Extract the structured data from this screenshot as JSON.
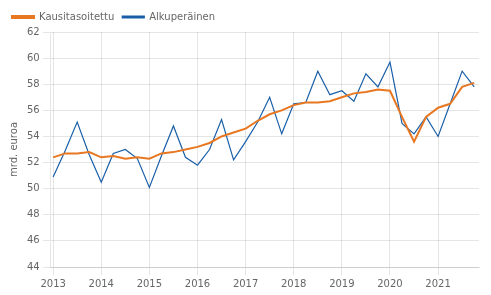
{
  "chart_data": {
    "type": "line",
    "ylabel": "mrd. euroa",
    "x": [
      2013,
      2013.25,
      2013.5,
      2013.75,
      2014,
      2014.25,
      2014.5,
      2014.75,
      2015,
      2015.25,
      2015.5,
      2015.75,
      2016,
      2016.25,
      2016.5,
      2016.75,
      2017,
      2017.25,
      2017.5,
      2017.75,
      2018,
      2018.25,
      2018.5,
      2018.75,
      2019,
      2019.25,
      2019.5,
      2019.75,
      2020,
      2020.25,
      2020.5,
      2020.75,
      2021,
      2021.25,
      2021.5,
      2021.75
    ],
    "series": [
      {
        "name": "Alkuperäinen",
        "color": "#1a5fa8",
        "values": [
          50.9,
          52.9,
          55.1,
          52.6,
          50.5,
          52.7,
          53.0,
          52.3,
          50.1,
          52.5,
          54.8,
          52.4,
          51.8,
          53.0,
          55.3,
          52.2,
          53.6,
          55.1,
          57.0,
          54.2,
          56.5,
          56.6,
          59.0,
          57.2,
          57.5,
          56.7,
          58.8,
          57.8,
          59.7,
          55.0,
          54.2,
          55.5,
          54.0,
          56.5,
          59.0,
          57.8
        ]
      },
      {
        "name": "Kausitasoitettu",
        "color": "#e87722",
        "values": [
          52.4,
          52.7,
          52.7,
          52.8,
          52.4,
          52.5,
          52.3,
          52.4,
          52.3,
          52.7,
          52.8,
          53.0,
          53.2,
          53.5,
          54.0,
          54.3,
          54.6,
          55.2,
          55.7,
          56.0,
          56.4,
          56.6,
          56.6,
          56.7,
          57.0,
          57.3,
          57.4,
          57.6,
          57.5,
          55.5,
          53.6,
          55.5,
          56.2,
          56.5,
          57.8,
          58.1
        ]
      }
    ],
    "xlim": [
      2012.95,
      2021.85
    ],
    "xticks": [
      2013,
      2014,
      2015,
      2016,
      2017,
      2018,
      2019,
      2020,
      2021
    ],
    "ylim": [
      44,
      62
    ],
    "yticks": [
      44,
      46,
      48,
      50,
      52,
      54,
      56,
      58,
      60,
      62
    ],
    "grid": true,
    "legend": "upper left"
  }
}
